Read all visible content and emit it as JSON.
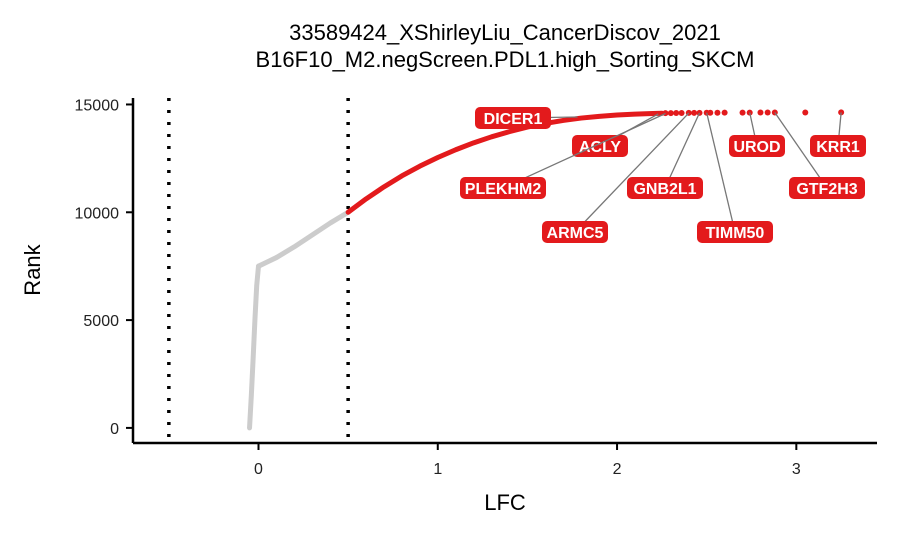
{
  "chart_data": {
    "type": "scatter",
    "title": "33589424_XShirleyLiu_CancerDiscov_2021",
    "subtitle": "B16F10_M2.negScreen.PDL1.high_Sorting_SKCM",
    "xlabel": "LFC",
    "ylabel": "Rank",
    "xlim": [
      -0.7,
      3.45
    ],
    "ylim": [
      -700,
      15300
    ],
    "x_ticks": [
      0,
      1,
      2,
      3
    ],
    "y_ticks": [
      0,
      5000,
      10000,
      15000
    ],
    "x_tick_labels": [
      "0",
      "1",
      "2",
      "3"
    ],
    "y_tick_labels": [
      "0",
      "5000",
      "10000",
      "15000"
    ],
    "cutoffs": [
      -0.5,
      0.5
    ],
    "grid": false,
    "colors": {
      "hit": "#e31a1c",
      "background": "#cccccc",
      "label_bg": "#e31a1c",
      "label_text": "#ffffff",
      "cutoff": "#000000"
    },
    "curve": {
      "background_segments": [
        {
          "x": [
            -0.05,
            -0.04,
            -0.03,
            -0.02,
            -0.01,
            0.0
          ],
          "y": [
            0,
            1500,
            3200,
            5000,
            6600,
            7500
          ]
        },
        {
          "x": [
            0.0,
            0.05,
            0.1,
            0.2,
            0.3,
            0.4,
            0.5
          ],
          "y": [
            7500,
            7700,
            7900,
            8400,
            8950,
            9500,
            10000
          ]
        }
      ],
      "hit_segment": {
        "x": [
          0.5,
          0.6,
          0.7,
          0.8,
          0.9,
          1.0,
          1.1,
          1.2,
          1.3,
          1.4,
          1.5,
          1.6,
          1.7,
          1.8,
          1.9,
          2.0,
          2.1,
          2.2,
          2.25
        ],
        "y": [
          10000,
          10620,
          11180,
          11690,
          12140,
          12540,
          12900,
          13220,
          13500,
          13740,
          13950,
          14120,
          14260,
          14370,
          14450,
          14510,
          14550,
          14580,
          14590
        ]
      }
    },
    "top_points": {
      "x": [
        2.27,
        2.3,
        2.33,
        2.36,
        2.4,
        2.43,
        2.46,
        2.5,
        2.52,
        2.56,
        2.6,
        2.7,
        2.74,
        2.8,
        2.84,
        2.88,
        3.05,
        3.25
      ],
      "y": [
        14600,
        14600,
        14605,
        14605,
        14610,
        14610,
        14612,
        14614,
        14615,
        14617,
        14620,
        14622,
        14624,
        14625,
        14627,
        14628,
        14630,
        14632
      ]
    },
    "labels": [
      {
        "name": "DICER1",
        "x": 1.78,
        "y": 14420
      },
      {
        "name": "ACLY",
        "x": 2.23,
        "y": 14560
      },
      {
        "name": "PLEKHM2",
        "x": 2.27,
        "y": 14580
      },
      {
        "name": "ARMC5",
        "x": 2.4,
        "y": 14600
      },
      {
        "name": "GNB2L1",
        "x": 2.46,
        "y": 14610
      },
      {
        "name": "TIMM50",
        "x": 2.5,
        "y": 14615
      },
      {
        "name": "UROD",
        "x": 2.74,
        "y": 14624
      },
      {
        "name": "GTF2H3",
        "x": 2.88,
        "y": 14628
      },
      {
        "name": "KRR1",
        "x": 3.25,
        "y": 14632
      }
    ]
  }
}
